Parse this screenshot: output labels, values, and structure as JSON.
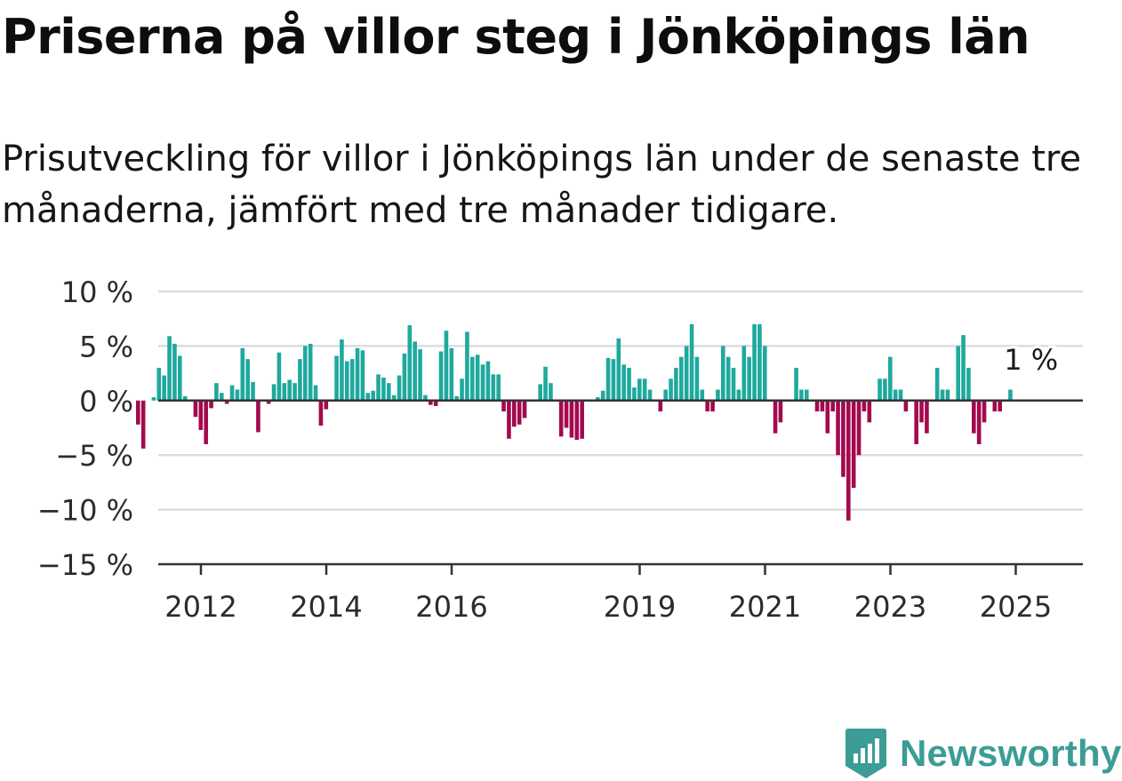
{
  "title": "Priserna på villor steg i Jönköpings län",
  "subtitle": "Prisutveckling för villor i Jönköpings län under de senaste tre månaderna, jämfört med tre månader tidigare.",
  "brand": {
    "name": "Newsworthy",
    "icon": "newsworthy-logo-icon",
    "color": "#3c9c96"
  },
  "colors": {
    "positive": "#1fa99e",
    "negative": "#a3094f",
    "grid": "#dcdcdc",
    "axis": "#333333",
    "text": "#2b2b2b"
  },
  "chart_data": {
    "type": "bar",
    "xlabel": "",
    "ylabel": "",
    "ylim": [
      -15,
      10
    ],
    "y_ticks": [
      10,
      5,
      0,
      -5,
      -10,
      -15
    ],
    "y_tick_labels": [
      "10 %",
      "5 %",
      "0 %",
      "−5 %",
      "−10 %",
      "−15 %"
    ],
    "x_tick_labels": [
      {
        "label": "2012",
        "date": "2012-01"
      },
      {
        "label": "2014",
        "date": "2014-01"
      },
      {
        "label": "2016",
        "date": "2016-01"
      },
      {
        "label": "2019",
        "date": "2019-01"
      },
      {
        "label": "2021",
        "date": "2021-01"
      },
      {
        "label": "2023",
        "date": "2023-01"
      },
      {
        "label": "2025",
        "date": "2025-01"
      }
    ],
    "grid": true,
    "start_month": "2011-01",
    "annotation": {
      "text": "1 %",
      "date": "2025-04",
      "value": 1
    },
    "values": [
      -2.2,
      -4.4,
      0,
      0.3,
      3,
      2.3,
      5.9,
      5.2,
      4.1,
      0.4,
      0,
      -1.5,
      -2.7,
      -4,
      -0.7,
      1.6,
      0.7,
      -0.3,
      1.4,
      1,
      4.8,
      3.8,
      1.7,
      -2.9,
      0,
      -0.3,
      1.5,
      4.4,
      1.6,
      1.9,
      1.6,
      3.8,
      5,
      5.2,
      1.4,
      -2.3,
      -0.8,
      0,
      4.1,
      5.6,
      3.6,
      3.8,
      4.8,
      4.6,
      0.7,
      0.9,
      2.4,
      2.1,
      1.6,
      0.5,
      2.3,
      4.3,
      6.9,
      5.4,
      4.7,
      0.5,
      -0.4,
      -0.5,
      4.5,
      6.4,
      4.8,
      0.4,
      2,
      6.3,
      4,
      4.2,
      3.3,
      3.6,
      2.4,
      2.4,
      -1,
      -3.5,
      -2.4,
      -2.2,
      -1.6,
      0,
      0,
      1.5,
      3.1,
      1.6,
      0,
      -3.3,
      -2.5,
      -3.4,
      -3.6,
      -3.5,
      0,
      0,
      0.3,
      0.9,
      3.9,
      3.8,
      5.7,
      3.3,
      3,
      1.2,
      2,
      2,
      1,
      0,
      -1,
      1,
      2,
      3,
      4,
      5,
      7,
      4,
      1,
      -1,
      -1,
      1,
      5,
      4,
      3,
      1,
      5,
      4,
      7,
      7,
      5,
      0,
      -3,
      -2,
      0,
      0,
      3,
      1,
      1,
      0,
      -1,
      -1,
      -3,
      -1,
      -5,
      -7,
      -11,
      -8,
      -5,
      -1,
      -2,
      0,
      2,
      2,
      4,
      1,
      1,
      -1,
      0,
      -4,
      -2,
      -3,
      0,
      3,
      1,
      1,
      0,
      5,
      6,
      3,
      -3,
      -4,
      -2,
      0,
      -1,
      -1,
      0,
      1
    ]
  }
}
